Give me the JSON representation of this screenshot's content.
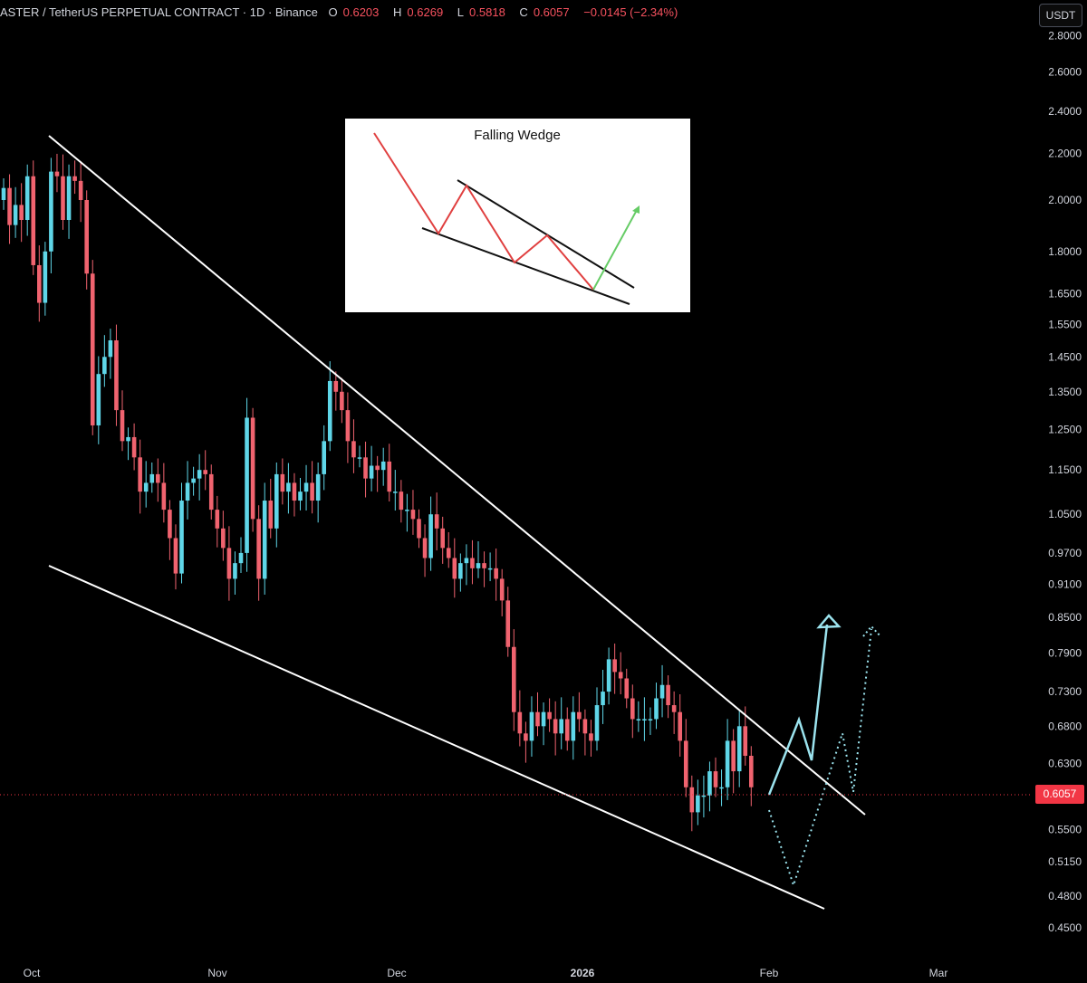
{
  "header": {
    "symbol": "ASTER / TetherUS PERPETUAL CONTRACT · 1D · Binance",
    "o_label": "O",
    "o_value": "0.6203",
    "h_label": "H",
    "h_value": "0.6269",
    "l_label": "L",
    "l_value": "0.5818",
    "c_label": "C",
    "c_value": "0.6057",
    "change": "−0.0145 (−2.34%)"
  },
  "currency_button": "USDT",
  "last_price": "0.6057",
  "colors": {
    "up": "#5fd6e8",
    "down": "#f0636f",
    "trendline": "#ffffff",
    "projection": "#9be3ee",
    "price_tag": "#f23645",
    "inset_red": "#e04040",
    "inset_green": "#66cc66"
  },
  "inset": {
    "title": "Falling Wedge"
  },
  "chart_data": {
    "type": "candlestick",
    "scale": "log",
    "ylim": [
      0.44,
      2.85
    ],
    "y_ticks": [
      "2.8000",
      "2.6000",
      "2.4000",
      "2.2000",
      "2.0000",
      "1.8000",
      "1.6500",
      "1.5500",
      "1.4500",
      "1.3500",
      "1.2500",
      "1.1500",
      "1.0500",
      "0.9700",
      "0.9100",
      "0.8500",
      "0.7900",
      "0.7300",
      "0.6800",
      "0.6300",
      "0.5900",
      "0.5500",
      "0.5150",
      "0.4800",
      "0.4500"
    ],
    "x_ticks": [
      "Oct",
      "Nov",
      "Dec",
      "2026",
      "Feb",
      "Mar"
    ],
    "closes": [
      2.05,
      1.9,
      1.98,
      1.92,
      2.1,
      1.75,
      1.62,
      1.8,
      2.12,
      2.1,
      1.92,
      2.1,
      2.08,
      2.0,
      1.72,
      1.26,
      1.4,
      1.45,
      1.5,
      1.3,
      1.22,
      1.23,
      1.18,
      1.1,
      1.12,
      1.14,
      1.12,
      1.06,
      1.0,
      0.93,
      1.08,
      1.12,
      1.13,
      1.15,
      1.14,
      1.06,
      1.02,
      0.98,
      0.92,
      0.95,
      0.97,
      1.28,
      1.04,
      0.92,
      1.08,
      1.02,
      1.14,
      1.1,
      1.12,
      1.08,
      1.1,
      1.12,
      1.08,
      1.14,
      1.22,
      1.38,
      1.35,
      1.3,
      1.22,
      1.18,
      1.18,
      1.13,
      1.16,
      1.15,
      1.17,
      1.1,
      1.1,
      1.06,
      1.06,
      1.04,
      1.0,
      0.96,
      1.05,
      1.02,
      0.98,
      0.96,
      0.92,
      0.95,
      0.96,
      0.94,
      0.95,
      0.94,
      0.94,
      0.92,
      0.88,
      0.8,
      0.7,
      0.67,
      0.66,
      0.7,
      0.68,
      0.7,
      0.69,
      0.67,
      0.69,
      0.66,
      0.7,
      0.69,
      0.67,
      0.66,
      0.71,
      0.73,
      0.78,
      0.76,
      0.75,
      0.72,
      0.69,
      0.69,
      0.69,
      0.69,
      0.72,
      0.74,
      0.71,
      0.7,
      0.66,
      0.6,
      0.57,
      0.59,
      0.59,
      0.62,
      0.6,
      0.6,
      0.66,
      0.62,
      0.68,
      0.64,
      0.6
    ],
    "last_price": 0.6057
  }
}
